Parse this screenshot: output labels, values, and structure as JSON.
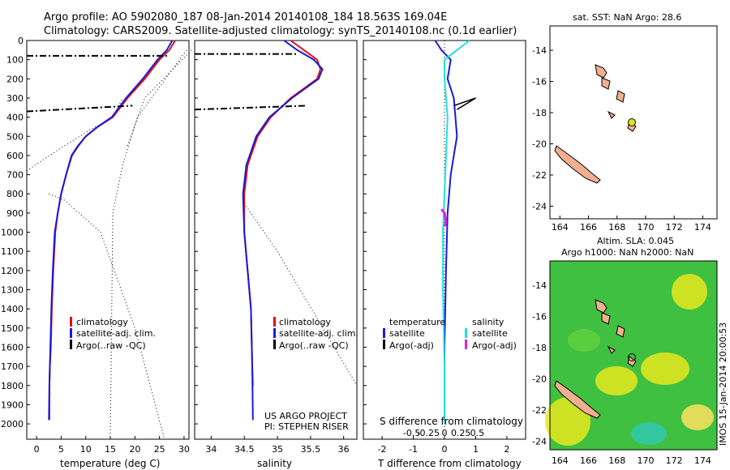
{
  "header": {
    "line1": "Argo profile: AO 5902080_187 08-Jan-2014 20140108_184 18.563S 169.04E",
    "line2": "Climatology: CARS2009. Satellite-adjusted climatology: synTS_20140108.nc (0.1d earlier)"
  },
  "colors": {
    "climatology": "#e01010",
    "satellite_adj": "#1a1ad8",
    "argo": "#000000",
    "salinity_sat": "#20e0e0",
    "salinity_argo": "#e020e0",
    "land": "#f0b090",
    "sla_green": "#40c040",
    "sla_yellow": "#e8e820",
    "sla_cyan": "#30c8b0",
    "argo_marker": "#d8e820"
  },
  "chart_data": [
    {
      "type": "line",
      "panel": "temperature",
      "xlabel": "temperature (deg C)",
      "ylabel": "",
      "xlim": [
        -2,
        31
      ],
      "ylim": [
        2080,
        0
      ],
      "xticks": [
        0,
        5,
        10,
        15,
        20,
        25,
        30
      ],
      "yticks": [
        0,
        100,
        200,
        300,
        400,
        500,
        600,
        700,
        800,
        900,
        1000,
        1100,
        1200,
        1300,
        1400,
        1500,
        1600,
        1700,
        1800,
        1900,
        2000
      ],
      "legend": [
        "climatology",
        "satellite-adj. clim.",
        "Argo(..raw -QC)"
      ],
      "series": [
        {
          "name": "climatology",
          "x": [
            28.2,
            27.0,
            25.0,
            22.0,
            18.5,
            15.5,
            12.5,
            10.0,
            8.5,
            7.2,
            6.0,
            5.0,
            4.3,
            3.8,
            3.4,
            3.1,
            2.9,
            2.7,
            2.6,
            2.6
          ],
          "y": [
            0,
            50,
            100,
            200,
            300,
            400,
            450,
            500,
            550,
            600,
            700,
            800,
            900,
            1000,
            1200,
            1400,
            1600,
            1700,
            1800,
            1980
          ]
        },
        {
          "name": "satellite-adj. clim.",
          "x": [
            27.6,
            26.5,
            24.6,
            21.6,
            18.2,
            15.3,
            12.4,
            10.0,
            8.4,
            7.1,
            6.0,
            5.0,
            4.3,
            3.7,
            3.3,
            3.0,
            2.8,
            2.7,
            2.6,
            2.5
          ],
          "y": [
            0,
            50,
            100,
            200,
            300,
            400,
            450,
            500,
            550,
            600,
            700,
            800,
            900,
            1000,
            1200,
            1400,
            1600,
            1700,
            1800,
            1980
          ]
        },
        {
          "name": "Argo(..raw -QC)",
          "x": [
            -2.0,
            26.8
          ],
          "y": [
            80,
            80
          ]
        },
        {
          "name": "Argo(..raw -QC)",
          "x": [
            -2.0,
            19.5
          ],
          "y": [
            370,
            340
          ]
        }
      ]
    },
    {
      "type": "line",
      "panel": "salinity",
      "xlabel": "salinity",
      "xlim": [
        33.75,
        36.2
      ],
      "ylim": [
        2080,
        0
      ],
      "xticks": [
        34,
        34.5,
        35,
        35.5,
        36
      ],
      "legend": [
        "climatology",
        "satellite-adj. clim.",
        "Argo(..raw -QC)"
      ],
      "series": [
        {
          "name": "climatology",
          "x": [
            35.2,
            35.4,
            35.6,
            35.65,
            35.6,
            35.2,
            34.9,
            34.7,
            34.55,
            34.5,
            34.5,
            34.55,
            34.6,
            34.62,
            34.63
          ],
          "y": [
            0,
            50,
            100,
            150,
            200,
            300,
            400,
            500,
            650,
            800,
            1000,
            1200,
            1400,
            1700,
            1800
          ]
        },
        {
          "name": "satellite-adj. clim.",
          "x": [
            35.1,
            35.3,
            35.55,
            35.68,
            35.62,
            35.22,
            34.88,
            34.68,
            34.53,
            34.48,
            34.5,
            34.55,
            34.6,
            34.62,
            34.63
          ],
          "y": [
            0,
            50,
            100,
            150,
            200,
            300,
            400,
            500,
            650,
            800,
            1000,
            1200,
            1400,
            1700,
            1980
          ]
        },
        {
          "name": "Argo(..raw -QC)",
          "x": [
            33.75,
            35.45
          ],
          "y": [
            360,
            340
          ]
        },
        {
          "name": "Argo(..raw -QC)",
          "x": [
            33.75,
            35.3
          ],
          "y": [
            70,
            70
          ]
        }
      ]
    },
    {
      "type": "line",
      "panel": "difference",
      "xlabel": "T difference from climatology",
      "xlabel2": "S difference from climatology",
      "xlim_T": [
        -2.6,
        2.6
      ],
      "xticks_T": [
        -2,
        -1,
        0,
        1,
        2
      ],
      "xticks_S": [
        -0.5,
        -0.25,
        0,
        0.25,
        0.5
      ],
      "xticklabels_S": [
        "-0.5",
        "-0.25",
        "0",
        "0.25",
        "0.5"
      ],
      "ylim": [
        2080,
        0
      ],
      "legend_T_title": "temperature",
      "legend_S_title": "salinity",
      "legend": [
        "satellite",
        "Argo(-adj)",
        "satellite",
        "Argo(-adj)"
      ],
      "series": [
        {
          "name": "T satellite",
          "x": [
            -0.3,
            -0.1,
            0.2,
            0.1,
            0.3,
            0.35,
            0.4,
            0.3,
            0.2,
            0.1,
            0.05,
            0.0,
            0.0
          ],
          "y": [
            0,
            50,
            100,
            200,
            300,
            400,
            500,
            600,
            700,
            900,
            1200,
            1600,
            2000
          ]
        },
        {
          "name": "S satellite",
          "x": [
            0.8,
            0.4,
            0.0,
            0.0,
            0.1,
            0.05,
            0.0,
            -0.05,
            -0.05,
            0.0,
            0.0
          ],
          "y": [
            0,
            50,
            100,
            200,
            400,
            600,
            800,
            1000,
            1300,
            1700,
            2000
          ]
        }
      ]
    },
    {
      "type": "map",
      "panel": "sst",
      "title": "sat. SST: NaN Argo: 28.6",
      "xticks": [
        "164",
        "166",
        "168",
        "170",
        "172",
        "174"
      ],
      "yticks": [
        "-14",
        "-16",
        "-18",
        "-20",
        "-22",
        "-24"
      ]
    },
    {
      "type": "heatmap",
      "panel": "sla",
      "title_line1": "Altim. SLA: 0.045",
      "title_line2": "Argo h1000: NaN h2000: NaN",
      "xticks": [
        "164",
        "166",
        "168",
        "170",
        "172",
        "174"
      ],
      "yticks": [
        "-14",
        "-16",
        "-18",
        "-20",
        "-22",
        "-24"
      ]
    }
  ],
  "footer": {
    "project_line1": "US ARGO PROJECT",
    "project_line2": "PI: STEPHEN RISER",
    "imos_stamp": "IMOS 15-Jan-2014 20:00:53"
  }
}
